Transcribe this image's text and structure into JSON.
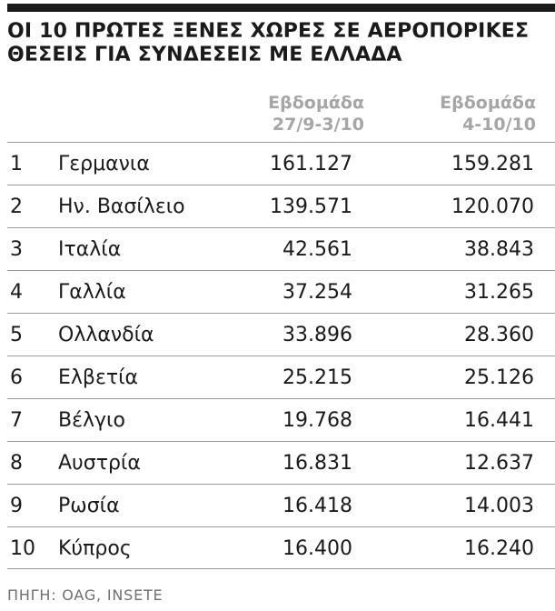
{
  "chart_data": {
    "type": "table",
    "title_lines": [
      "ΟΙ 10 ΠΡΩΤΕΣ ΞΕΝΕΣ ΧΩΡΕΣ ΣΕ ΑΕΡΟΠΟΡΙΚΕΣ",
      "ΘΕΣΕΙΣ ΓΙΑ ΣΥΝΔΕΣΕΙΣ ΜΕ ΕΛΛΑΔΑ"
    ],
    "columns": [
      {
        "label_lines": [
          "Εβδομάδα",
          "27/9-3/10"
        ]
      },
      {
        "label_lines": [
          "Εβδομάδα",
          "4-10/10"
        ]
      }
    ],
    "rows": [
      {
        "rank": "1",
        "country": "Γερμανια",
        "values": [
          "161.127",
          "159.281"
        ]
      },
      {
        "rank": "2",
        "country": "Ην. Βασίλειο",
        "values": [
          "139.571",
          "120.070"
        ]
      },
      {
        "rank": "3",
        "country": "Ιταλία",
        "values": [
          "42.561",
          "38.843"
        ]
      },
      {
        "rank": "4",
        "country": "Γαλλία",
        "values": [
          "37.254",
          "31.265"
        ]
      },
      {
        "rank": "5",
        "country": "Ολλανδία",
        "values": [
          "33.896",
          "28.360"
        ]
      },
      {
        "rank": "6",
        "country": "Ελβετία",
        "values": [
          "25.215",
          "25.126"
        ]
      },
      {
        "rank": "7",
        "country": "Βέλγιο",
        "values": [
          "19.768",
          "16.441"
        ]
      },
      {
        "rank": "8",
        "country": "Αυστρία",
        "values": [
          "16.831",
          "12.637"
        ]
      },
      {
        "rank": "9",
        "country": "Ρωσία",
        "values": [
          "16.418",
          "14.003"
        ]
      },
      {
        "rank": "10",
        "country": "Κύπρος",
        "values": [
          "16.400",
          "16.240"
        ]
      }
    ],
    "source": "ΠΗΓΗ: OAG, INSETE"
  },
  "colors": {
    "text": "#1a1a1a",
    "header_text": "#a6a6a6",
    "rule": "#9a9a9a",
    "source_text": "#6f6f6f"
  }
}
